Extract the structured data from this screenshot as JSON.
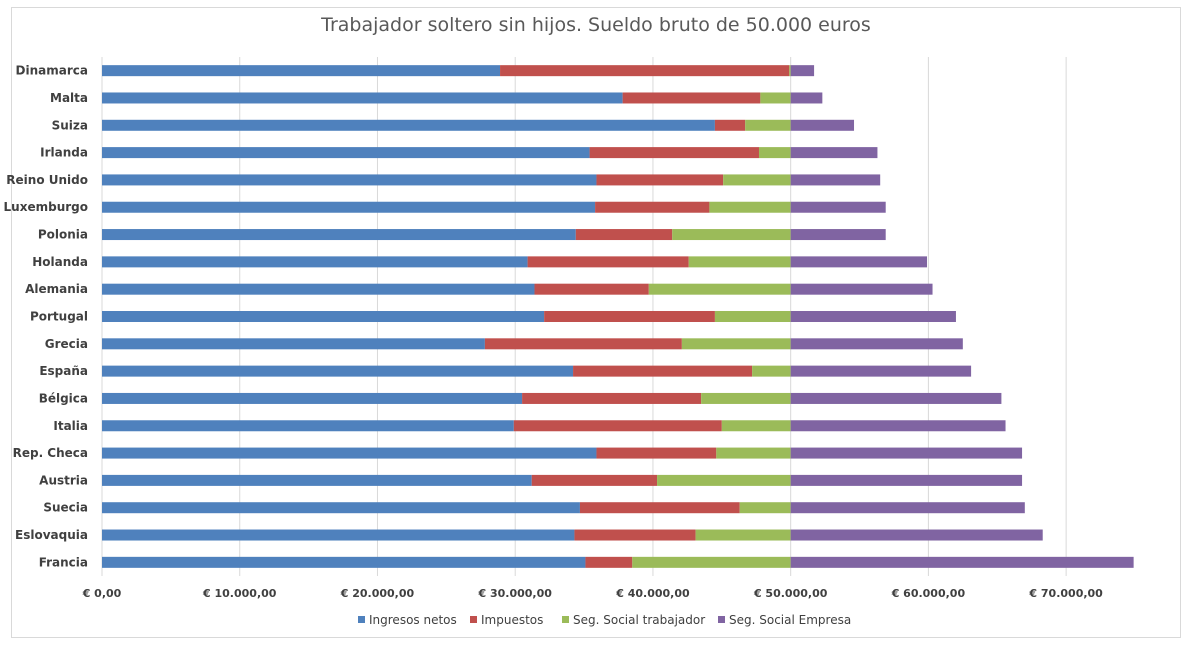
{
  "chart_data": {
    "type": "bar",
    "orientation": "horizontal",
    "stacked": true,
    "title": "Trabajador soltero sin hijos. Sueldo bruto de 50.000 euros",
    "xlabel": "",
    "ylabel": "",
    "xlim": [
      0,
      75000
    ],
    "x_ticks": [
      0,
      10000,
      20000,
      30000,
      40000,
      50000,
      60000,
      70000
    ],
    "x_tick_labels": [
      "€ 0,00",
      "€ 10.000,00",
      "€ 20.000,00",
      "€ 30.000,00",
      "€ 40.000,00",
      "€ 50.000,00",
      "€ 60.000,00",
      "€ 70.000,00"
    ],
    "grid": "vertical",
    "legend_position": "bottom",
    "categories": [
      "Dinamarca",
      "Malta",
      "Suiza",
      "Irlanda",
      "Reino Unido",
      "Luxemburgo",
      "Polonia",
      "Holanda",
      "Alemania",
      "Portugal",
      "Grecia",
      "España",
      "Bélgica",
      "Italia",
      "Rep. Checa",
      "Austria",
      "Suecia",
      "Eslovaquia",
      "Francia"
    ],
    "series": [
      {
        "name": "Ingresos netos",
        "color": "#4f81bd",
        "values": [
          28900,
          37800,
          44500,
          35400,
          35900,
          35800,
          34400,
          30900,
          31400,
          32100,
          27800,
          34200,
          30500,
          29900,
          35900,
          31200,
          34700,
          34300,
          35100
        ]
      },
      {
        "name": "Impuestos",
        "color": "#c0504d",
        "values": [
          21000,
          10000,
          2200,
          12300,
          9200,
          8300,
          7000,
          11700,
          8300,
          12400,
          14300,
          13000,
          13000,
          15100,
          8700,
          9100,
          11600,
          8800,
          3400
        ]
      },
      {
        "name": "Seg. Social trabajador",
        "color": "#9bbb59",
        "values": [
          100,
          2200,
          3300,
          2300,
          4900,
          5900,
          8600,
          7400,
          10300,
          5500,
          7900,
          2800,
          6500,
          5000,
          5400,
          9700,
          3700,
          6900,
          11500
        ]
      },
      {
        "name": "Seg. Social Empresa",
        "color": "#8064a2",
        "values": [
          1700,
          2300,
          4600,
          6300,
          6500,
          6900,
          6900,
          9900,
          10300,
          12000,
          12500,
          13100,
          15300,
          15600,
          16800,
          16800,
          17000,
          18300,
          24900
        ]
      }
    ]
  }
}
